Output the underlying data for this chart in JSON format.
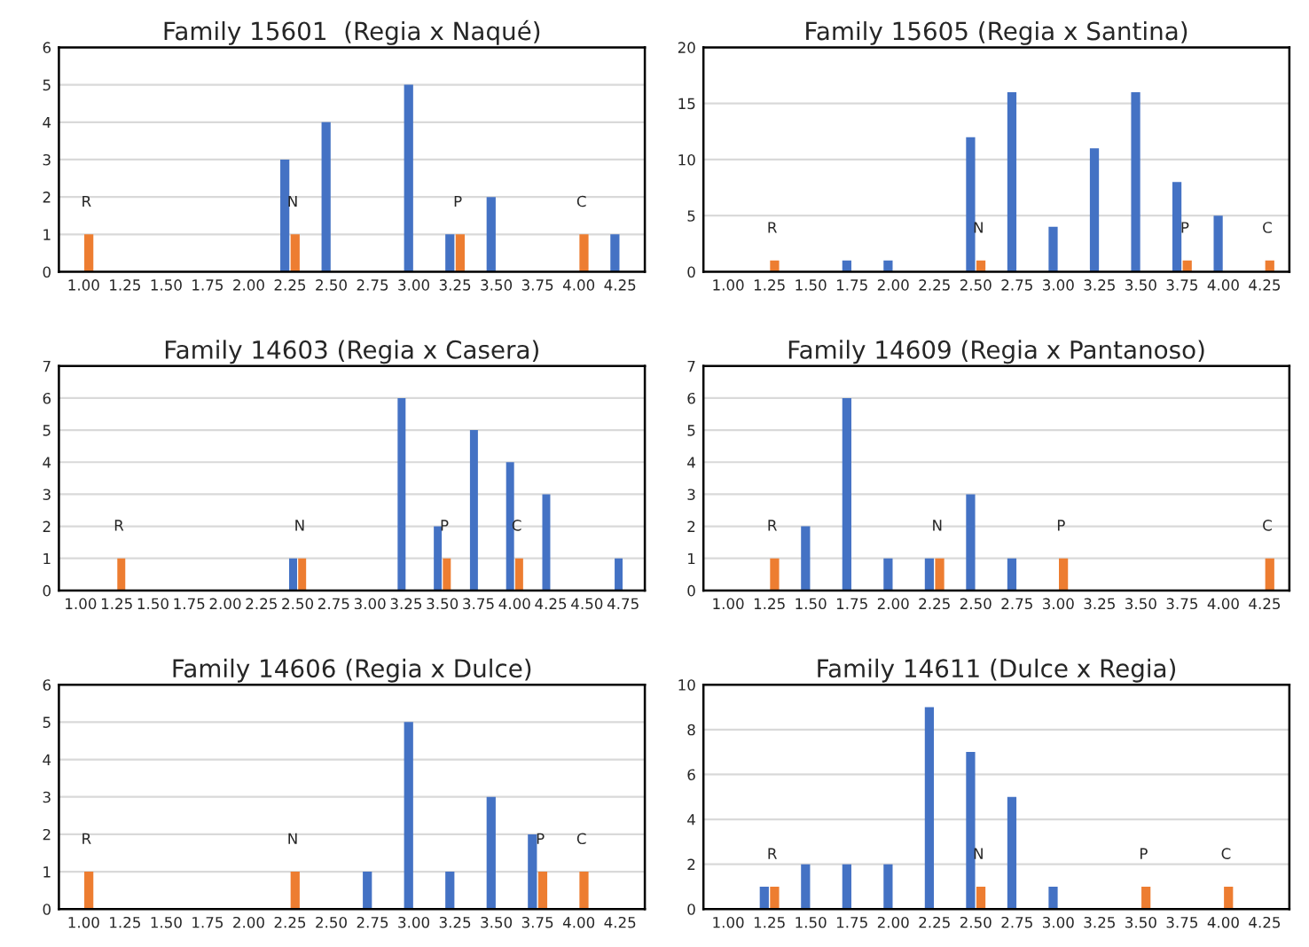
{
  "chart_data": [
    {
      "type": "bar",
      "title": "Family 15601  (Regia x Naqué)",
      "categories": [
        "1.00",
        "1.25",
        "1.50",
        "1.75",
        "2.00",
        "2.25",
        "2.50",
        "2.75",
        "3.00",
        "3.25",
        "3.50",
        "3.75",
        "4.00",
        "4.25"
      ],
      "series": [
        {
          "color": "#4472c4",
          "values": [
            0,
            0,
            0,
            0,
            0,
            3,
            4,
            0,
            5,
            1,
            2,
            0,
            0,
            1
          ]
        },
        {
          "color": "#ed7d31",
          "values": [
            1,
            0,
            0,
            0,
            0,
            1,
            0,
            0,
            0,
            1,
            0,
            0,
            1,
            0
          ]
        }
      ],
      "ylim": [
        0,
        6
      ],
      "yticks": [
        0,
        1,
        2,
        3,
        4,
        5,
        6
      ],
      "grid": "y",
      "annotations": [
        "R",
        "N",
        "P",
        "C"
      ]
    },
    {
      "type": "bar",
      "title": "Family 15605 (Regia x Santina)",
      "categories": [
        "1.00",
        "1.25",
        "1.50",
        "1.75",
        "2.00",
        "2.25",
        "2.50",
        "2.75",
        "3.00",
        "3.25",
        "3.50",
        "3.75",
        "4.00",
        "4.25"
      ],
      "series": [
        {
          "color": "#4472c4",
          "values": [
            0,
            0,
            0,
            1,
            1,
            0,
            12,
            16,
            4,
            11,
            16,
            8,
            5,
            0
          ]
        },
        {
          "color": "#ed7d31",
          "values": [
            0,
            1,
            0,
            0,
            0,
            0,
            1,
            0,
            0,
            0,
            0,
            1,
            0,
            1
          ]
        }
      ],
      "ylim": [
        0,
        20
      ],
      "yticks": [
        0,
        5,
        10,
        15,
        20
      ],
      "grid": "y",
      "annotations": [
        "R",
        "N",
        "P",
        "C"
      ]
    },
    {
      "type": "bar",
      "title": "Family 14603 (Regia x Casera)",
      "categories": [
        "1.00",
        "1.25",
        "1.50",
        "1.75",
        "2.00",
        "2.25",
        "2.50",
        "2.75",
        "3.00",
        "3.25",
        "3.50",
        "3.75",
        "4.00",
        "4.25",
        "4.50",
        "4.75"
      ],
      "series": [
        {
          "color": "#4472c4",
          "values": [
            0,
            0,
            0,
            0,
            0,
            0,
            1,
            0,
            0,
            6,
            2,
            5,
            4,
            3,
            0,
            1
          ]
        },
        {
          "color": "#ed7d31",
          "values": [
            0,
            1,
            0,
            0,
            0,
            0,
            1,
            0,
            0,
            0,
            1,
            0,
            1,
            0,
            0,
            0
          ]
        }
      ],
      "ylim": [
        0,
        7
      ],
      "yticks": [
        0,
        1,
        2,
        3,
        4,
        5,
        6,
        7
      ],
      "grid": "y",
      "annotations": [
        "R",
        "N",
        "P",
        "C"
      ]
    },
    {
      "type": "bar",
      "title": "Family 14609 (Regia x Pantanoso)",
      "categories": [
        "1.00",
        "1.25",
        "1.50",
        "1.75",
        "2.00",
        "2.25",
        "2.50",
        "2.75",
        "3.00",
        "3.25",
        "3.50",
        "3.75",
        "4.00",
        "4.25"
      ],
      "series": [
        {
          "color": "#4472c4",
          "values": [
            0,
            0,
            2,
            6,
            1,
            1,
            3,
            1,
            0,
            0,
            0,
            0,
            0,
            0
          ]
        },
        {
          "color": "#ed7d31",
          "values": [
            0,
            1,
            0,
            0,
            0,
            1,
            0,
            0,
            1,
            0,
            0,
            0,
            0,
            1
          ]
        }
      ],
      "ylim": [
        0,
        7
      ],
      "yticks": [
        0,
        1,
        2,
        3,
        4,
        5,
        6,
        7
      ],
      "grid": "y",
      "annotations": [
        "R",
        "N",
        "P",
        "C"
      ]
    },
    {
      "type": "bar",
      "title": "Family 14606 (Regia x Dulce)",
      "categories": [
        "1.00",
        "1.25",
        "1.50",
        "1.75",
        "2.00",
        "2.25",
        "2.50",
        "2.75",
        "3.00",
        "3.25",
        "3.50",
        "3.75",
        "4.00",
        "4.25"
      ],
      "series": [
        {
          "color": "#4472c4",
          "values": [
            0,
            0,
            0,
            0,
            0,
            0,
            0,
            1,
            5,
            1,
            3,
            2,
            0,
            0
          ]
        },
        {
          "color": "#ed7d31",
          "values": [
            1,
            0,
            0,
            0,
            0,
            1,
            0,
            0,
            0,
            0,
            0,
            1,
            1,
            0
          ]
        }
      ],
      "ylim": [
        0,
        6
      ],
      "yticks": [
        0,
        1,
        2,
        3,
        4,
        5,
        6
      ],
      "grid": "y",
      "annotations": [
        "R",
        "N",
        "P",
        "C"
      ]
    },
    {
      "type": "bar",
      "title": "Family 14611 (Dulce x Regia)",
      "categories": [
        "1.00",
        "1.25",
        "1.50",
        "1.75",
        "2.00",
        "2.25",
        "2.50",
        "2.75",
        "3.00",
        "3.25",
        "3.50",
        "3.75",
        "4.00",
        "4.25"
      ],
      "series": [
        {
          "color": "#4472c4",
          "values": [
            0,
            1,
            2,
            2,
            2,
            9,
            7,
            5,
            1,
            0,
            0,
            0,
            0,
            0
          ]
        },
        {
          "color": "#ed7d31",
          "values": [
            0,
            1,
            0,
            0,
            0,
            0,
            1,
            0,
            0,
            0,
            1,
            0,
            1,
            0
          ]
        }
      ],
      "ylim": [
        0,
        10
      ],
      "yticks": [
        0,
        2,
        4,
        6,
        8,
        10
      ],
      "grid": "y",
      "annotations": [
        "R",
        "N",
        "P",
        "C"
      ]
    }
  ]
}
